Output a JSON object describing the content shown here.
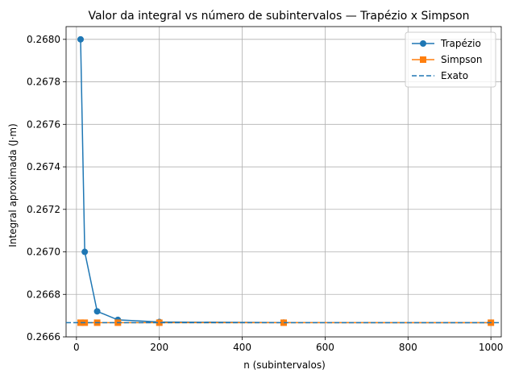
{
  "chart_data": {
    "type": "line",
    "title": "Valor da integral vs número de subintervalos — Trapézio x Simpson",
    "xlabel": "n (subintervalos)",
    "ylabel": "Integral aproximada (J·m)",
    "xlim": [
      -25,
      1025
    ],
    "ylim": [
      0.2666,
      0.26806
    ],
    "xticks": [
      0,
      200,
      400,
      600,
      800,
      1000
    ],
    "xtick_labels": [
      "0",
      "200",
      "400",
      "600",
      "800",
      "1000"
    ],
    "yticks": [
      0.2666,
      0.2668,
      0.267,
      0.2672,
      0.2674,
      0.2676,
      0.2678,
      0.268
    ],
    "ytick_labels": [
      "0.2666",
      "0.2668",
      "0.2670",
      "0.2672",
      "0.2674",
      "0.2676",
      "0.2678",
      "0.2680"
    ],
    "grid": true,
    "legend_position": "top-right",
    "series": [
      {
        "name": "Trapézio",
        "x": [
          10,
          20,
          50,
          100,
          200,
          500,
          1000
        ],
        "values": [
          0.268,
          0.267,
          0.26672,
          0.26668,
          0.26667,
          0.2666672,
          0.2666668
        ],
        "color": "#1f77b4",
        "marker": "circle",
        "line": "solid"
      },
      {
        "name": "Simpson",
        "x": [
          10,
          20,
          50,
          100,
          200,
          500,
          1000
        ],
        "values": [
          0.2666667,
          0.2666667,
          0.2666667,
          0.2666667,
          0.2666667,
          0.2666667,
          0.2666667
        ],
        "color": "#ff7f0e",
        "marker": "square",
        "line": "solid"
      },
      {
        "name": "Exato",
        "hline": 0.2666667,
        "color": "#1f77b4",
        "line": "dashed"
      }
    ]
  }
}
